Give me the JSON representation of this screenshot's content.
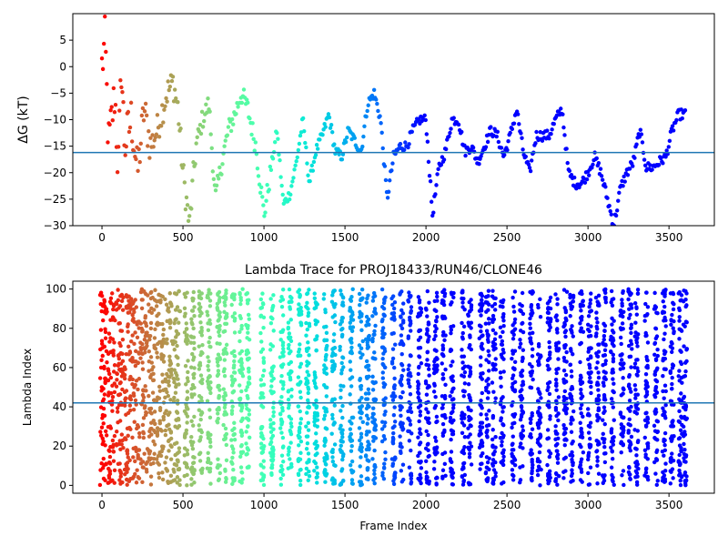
{
  "chart_data": [
    {
      "type": "scatter",
      "title": "",
      "xlabel": "",
      "ylabel": "ΔG (kT)",
      "xlim": [
        -180,
        3780
      ],
      "ylim": [
        -30,
        10
      ],
      "xticks": [
        0,
        500,
        1000,
        1500,
        2000,
        2500,
        3000,
        3500
      ],
      "yticks": [
        5,
        0,
        -5,
        -10,
        -15,
        -20,
        -25,
        -30
      ],
      "hline": -16.2,
      "hline_color": "#1f77b4",
      "colormap": "rainbow (red at frame 0 → violet at late frames)",
      "n_frames": 3600,
      "series": [
        {
          "anchors_x": [
            0,
            20,
            40,
            60,
            80,
            100,
            120,
            140,
            180,
            220,
            260,
            300,
            340,
            400,
            440,
            470,
            500,
            540,
            580,
            620,
            660,
            700,
            740,
            780,
            820,
            860,
            900,
            950,
            1000,
            1040,
            1080,
            1120,
            1160,
            1200,
            1240,
            1280,
            1320,
            1360,
            1400,
            1440,
            1480,
            1520,
            1560,
            1600,
            1640,
            1680,
            1720,
            1760,
            1800,
            1840,
            1880,
            1920,
            1960,
            2000,
            2040,
            2080,
            2120,
            2160,
            2200,
            2240,
            2280,
            2320,
            2360,
            2400,
            2440,
            2480,
            2520,
            2560,
            2600,
            2640,
            2680,
            2720,
            2760,
            2800,
            2840,
            2880,
            2920,
            2960,
            3000,
            3040,
            3080,
            3120,
            3160,
            3200,
            3240,
            3280,
            3320,
            3360,
            3400,
            3440,
            3480,
            3520,
            3560,
            3600
          ],
          "anchors_y": [
            0,
            5,
            -15,
            -10,
            -5,
            -20,
            0,
            -15,
            -10,
            -20,
            -8,
            -15,
            -12,
            -5,
            -3,
            -8,
            -20,
            -30,
            -15,
            -10,
            -7,
            -25,
            -18,
            -12,
            -9,
            -5,
            -8,
            -15,
            -28,
            -20,
            -12,
            -26,
            -24,
            -18,
            -10,
            -22,
            -16,
            -13,
            -9,
            -16,
            -17,
            -12,
            -14,
            -16,
            -7,
            -5,
            -10,
            -25,
            -17,
            -15,
            -15,
            -12,
            -10,
            -10,
            -28,
            -19,
            -16,
            -10,
            -10,
            -16,
            -15,
            -18,
            -15,
            -12,
            -13,
            -17,
            -13,
            -8,
            -16,
            -20,
            -13,
            -13,
            -13,
            -10,
            -8,
            -20,
            -22,
            -22,
            -20,
            -17,
            -20,
            -25,
            -30,
            -23,
            -20,
            -18,
            -12,
            -19,
            -19,
            -18,
            -17,
            -12,
            -9,
            -9
          ],
          "noise": [
            5,
            5,
            5,
            5,
            5,
            5,
            5,
            5,
            4,
            4,
            4,
            3,
            3,
            3,
            3,
            3,
            3,
            3,
            2,
            2,
            2,
            2,
            2,
            2,
            2,
            2,
            2,
            2,
            2,
            1,
            1,
            1,
            1,
            1,
            1,
            1,
            1,
            1,
            1,
            1,
            1,
            1,
            1,
            1,
            1,
            1,
            1,
            1,
            1,
            1,
            1,
            1,
            1,
            1,
            1,
            1,
            1,
            1,
            1,
            1,
            1,
            1,
            1,
            1,
            1,
            1,
            1,
            1,
            1,
            1,
            1,
            1,
            1,
            1,
            1,
            1,
            1,
            1,
            1,
            1,
            1,
            1,
            1,
            1,
            1,
            1,
            1,
            1,
            1,
            1,
            1,
            1,
            1,
            1
          ]
        }
      ]
    },
    {
      "type": "scatter",
      "title": "Lambda Trace for PROJ18433/RUN46/CLONE46",
      "xlabel": "Frame Index",
      "ylabel": "Lambda Index",
      "xlim": [
        -180,
        3780
      ],
      "ylim": [
        -4,
        104
      ],
      "xticks": [
        0,
        500,
        1000,
        1500,
        2000,
        2500,
        3000,
        3500
      ],
      "yticks": [
        0,
        20,
        40,
        60,
        80,
        100
      ],
      "hline": 42,
      "hline_color": "#1f77b4",
      "colormap": "rainbow (red at frame 0 → violet at late frames)",
      "n_frames": 3600,
      "series": [
        {
          "description_values": "lambda index sweeps between 0 and 100; early frames dense across full range, later frames form vertical bands roughly every 50–100 frames",
          "band_centers": [
            10,
            60,
            110,
            160,
            210,
            260,
            310,
            360,
            410,
            460,
            520,
            560,
            610,
            660,
            720,
            760,
            810,
            860,
            900,
            990,
            1050,
            1110,
            1160,
            1220,
            1270,
            1320,
            1380,
            1430,
            1480,
            1540,
            1600,
            1640,
            1680,
            1740,
            1800,
            1850,
            1900,
            1960,
            2010,
            2060,
            2110,
            2160,
            2230,
            2270,
            2340,
            2380,
            2420,
            2470,
            2540,
            2590,
            2650,
            2700,
            2760,
            2810,
            2860,
            2900,
            2960,
            3010,
            3060,
            3100,
            3150,
            3210,
            3260,
            3300,
            3360,
            3420,
            3470,
            3520,
            3570,
            3600
          ]
        }
      ]
    }
  ]
}
